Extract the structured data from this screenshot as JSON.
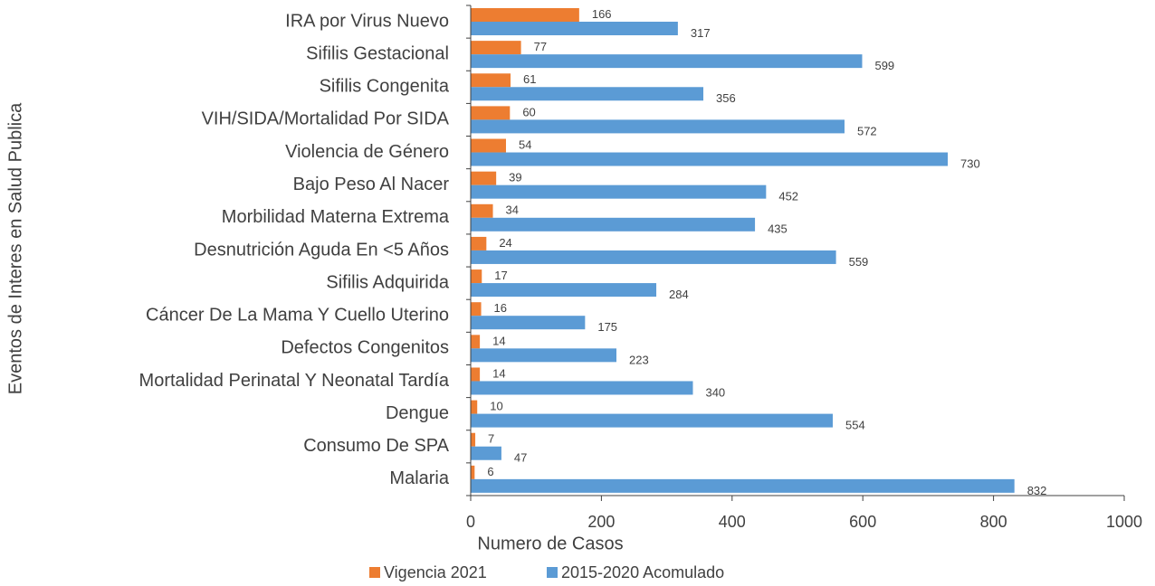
{
  "chart_data": {
    "type": "bar",
    "orientation": "horizontal",
    "xlabel": "Numero de Casos",
    "ylabel": "Eventos de Interes en Salud Publica",
    "categories": [
      "IRA por Virus Nuevo",
      "Sifilis Gestacional",
      "Sifilis Congenita",
      "VIH/SIDA/Mortalidad Por SIDA",
      "Violencia de Género",
      "Bajo Peso Al Nacer",
      "Morbilidad Materna Extrema",
      "Desnutrición Aguda En <5 Años",
      "Sifilis Adquirida",
      "Cáncer De La Mama Y Cuello Uterino",
      "Defectos Congenitos",
      "Mortalidad Perinatal Y Neonatal Tardía",
      "Dengue",
      "Consumo De SPA",
      "Malaria"
    ],
    "series": [
      {
        "name": "Vigencia 2021",
        "color": "#ed7d31",
        "values": [
          166,
          77,
          61,
          60,
          54,
          39,
          34,
          24,
          17,
          16,
          14,
          14,
          10,
          7,
          6
        ]
      },
      {
        "name": "2015-2020 Acomulado",
        "color": "#5b9bd5",
        "values": [
          317,
          599,
          356,
          572,
          730,
          452,
          435,
          559,
          284,
          175,
          223,
          340,
          554,
          47,
          832
        ]
      }
    ],
    "xlim": [
      0,
      1000
    ],
    "xticks": [
      0,
      200,
      400,
      600,
      800,
      1000
    ],
    "legend": "bottom"
  }
}
